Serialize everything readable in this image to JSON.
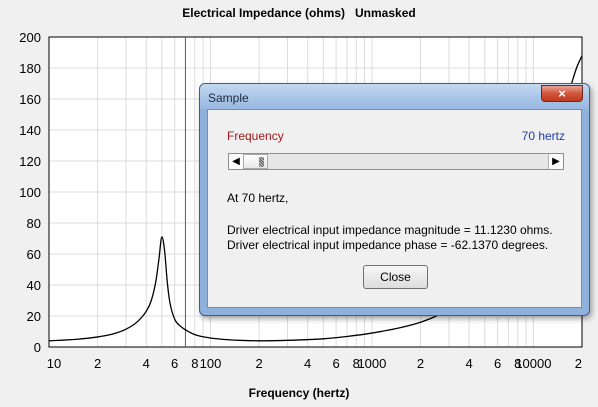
{
  "chart_data": {
    "type": "line",
    "title": "Electrical Impedance (ohms)   Unmasked",
    "xlabel": "Frequency (hertz)",
    "ylabel": "",
    "xscale": "log",
    "xlim": [
      10,
      20000
    ],
    "ylim": [
      0,
      200
    ],
    "grid": true,
    "x_tick_labels": [
      {
        "x": 10,
        "label": "10"
      },
      {
        "x": 20,
        "label": "2"
      },
      {
        "x": 40,
        "label": "4"
      },
      {
        "x": 60,
        "label": "6"
      },
      {
        "x": 80,
        "label": "8"
      },
      {
        "x": 100,
        "label": "100"
      },
      {
        "x": 200,
        "label": "2"
      },
      {
        "x": 400,
        "label": "4"
      },
      {
        "x": 600,
        "label": "6"
      },
      {
        "x": 800,
        "label": "8"
      },
      {
        "x": 1000,
        "label": "1000"
      },
      {
        "x": 2000,
        "label": "2"
      },
      {
        "x": 4000,
        "label": "4"
      },
      {
        "x": 6000,
        "label": "6"
      },
      {
        "x": 8000,
        "label": "8"
      },
      {
        "x": 10000,
        "label": "10000"
      },
      {
        "x": 20000,
        "label": "2"
      }
    ],
    "y_ticks": [
      0,
      20,
      40,
      60,
      80,
      100,
      120,
      140,
      160,
      180,
      200
    ],
    "marker_frequency": 70,
    "series": [
      {
        "color": "#000000",
        "x": [
          10,
          15,
          20,
          25,
          30,
          35,
          40,
          43,
          46,
          48,
          50,
          52,
          54,
          56,
          60,
          65,
          70,
          80,
          100,
          150,
          200,
          300,
          500,
          700,
          1000,
          1500,
          2000,
          2500,
          2800,
          13000,
          15000,
          17000,
          18500,
          20000
        ],
        "y": [
          4,
          5,
          6.5,
          8.5,
          11.5,
          16,
          23,
          30,
          43,
          57,
          71,
          62,
          42,
          29,
          18,
          13.5,
          11.1,
          8,
          5.8,
          4.3,
          4,
          4.3,
          5.3,
          6.8,
          9,
          12.5,
          16,
          20,
          23,
          130,
          150,
          168,
          180,
          188
        ]
      }
    ]
  },
  "dialog": {
    "title": "Sample",
    "close_icon": "×",
    "frequency_label": "Frequency",
    "frequency_value": "70 hertz",
    "slider_value": 70,
    "scroll_left_icon": "◀",
    "scroll_right_icon": "▶",
    "line1": "At 70 hertz,",
    "line2": "Driver electrical input impedance magnitude = 11.1230 ohms.",
    "line3": "Driver electrical input impedance phase = -62.1370 degrees.",
    "close_button": "Close"
  },
  "colors": {
    "marker": "#c0392b",
    "curve": "#000000",
    "grid": "#dcdcdc"
  }
}
